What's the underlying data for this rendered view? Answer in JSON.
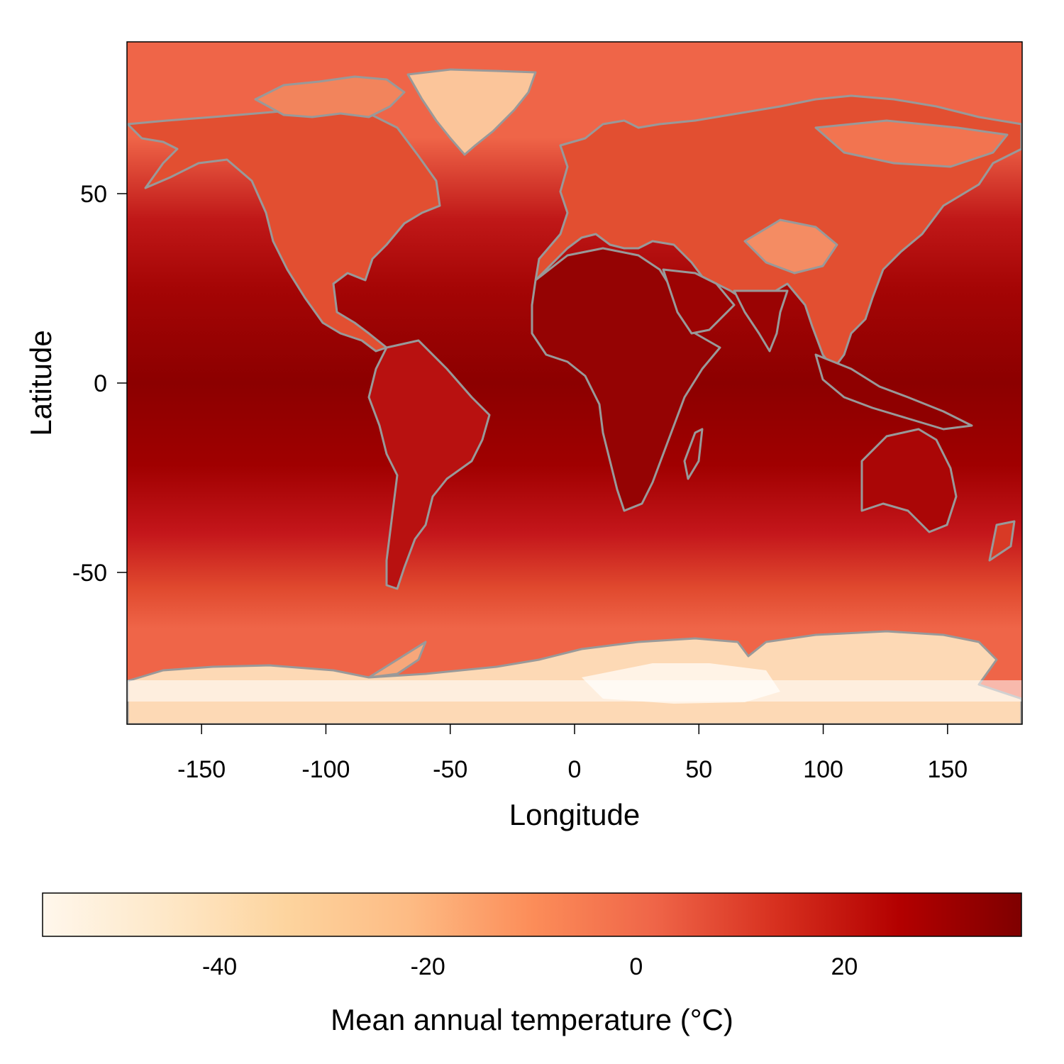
{
  "map": {
    "projection": "equirectangular (longitude/latitude)",
    "variable": "mean annual temperature",
    "lon_range": [
      -180,
      180
    ],
    "lat_range": [
      -90,
      90
    ],
    "coastline_color": "#999999",
    "x_axis": {
      "label": "Longitude",
      "ticks": [
        -150,
        -100,
        -50,
        0,
        50,
        100,
        150
      ]
    },
    "y_axis": {
      "label": "Latitude",
      "ticks": [
        50,
        0,
        -50
      ]
    }
  },
  "legend": {
    "title": "Mean annual temperature (°C)",
    "range": [
      -57,
      37
    ],
    "ticks": [
      -40,
      -20,
      0,
      20
    ],
    "palette": [
      "#fff7ec",
      "#fee8c8",
      "#fdd49e",
      "#fdbb84",
      "#fc8d59",
      "#ef6548",
      "#d7301f",
      "#b30000",
      "#7f0000"
    ]
  }
}
